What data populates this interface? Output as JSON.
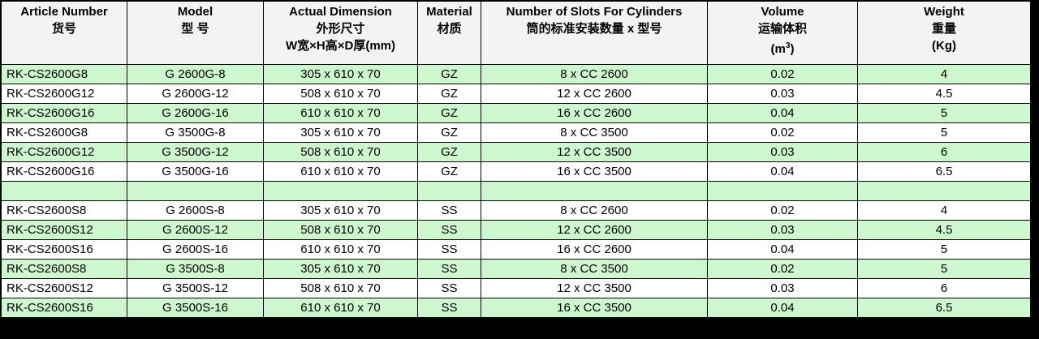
{
  "table": {
    "columns": [
      {
        "lines": [
          "Article Number",
          "货号"
        ]
      },
      {
        "lines": [
          "Model",
          "型  号"
        ]
      },
      {
        "lines": [
          "Actual Dimension",
          "外形尺寸",
          "W宽×H高×D厚(mm)"
        ]
      },
      {
        "lines": [
          "Material",
          "材质"
        ]
      },
      {
        "lines": [
          "Number of Slots For Cylinders",
          "筒的标准安装数量 x 型号"
        ]
      },
      {
        "lines": [
          "Volume",
          "运输体积"
        ],
        "unit": [
          "(m",
          "3",
          ")"
        ]
      },
      {
        "lines": [
          "Weight",
          "重量",
          "(Kg)"
        ]
      }
    ],
    "groups": [
      {
        "rows": [
          [
            "RK-CS2600G8",
            "G 2600G-8",
            "305 x 610 x 70",
            "GZ",
            "8  x CC 2600",
            "0.02",
            "4"
          ],
          [
            "RK-CS2600G12",
            "G 2600G-12",
            "508 x 610 x 70",
            "GZ",
            "12  x CC 2600",
            "0.03",
            "4.5"
          ],
          [
            "RK-CS2600G16",
            "G 2600G-16",
            "610 x 610 x 70",
            "GZ",
            "16  x CC 2600",
            "0.04",
            "5"
          ],
          [
            "RK-CS2600G8",
            "G 3500G-8",
            "305 x 610 x 70",
            "GZ",
            "8  x CC 3500",
            "0.02",
            "5"
          ],
          [
            "RK-CS2600G12",
            "G 3500G-12",
            "508 x 610 x 70",
            "GZ",
            "12  x CC 3500",
            "0.03",
            "6"
          ],
          [
            "RK-CS2600G16",
            "G 3500G-16",
            "610 x 610 x 70",
            "GZ",
            "16  x CC 3500",
            "0.04",
            "6.5"
          ]
        ]
      },
      {
        "rows": [
          [
            "RK-CS2600S8",
            "G 2600S-8",
            "305 x 610 x 70",
            "SS",
            "8  x CC 2600",
            "0.02",
            "4"
          ],
          [
            "RK-CS2600S12",
            "G 2600S-12",
            "508 x 610 x 70",
            "SS",
            "12  x CC 2600",
            "0.03",
            "4.5"
          ],
          [
            "RK-CS2600S16",
            "G 2600S-16",
            "610 x 610 x 70",
            "SS",
            "16  x CC 2600",
            "0.04",
            "5"
          ],
          [
            "RK-CS2600S8",
            "G 3500S-8",
            "305 x 610 x 70",
            "SS",
            "8  x CC 3500",
            "0.02",
            "5"
          ],
          [
            "RK-CS2600S12",
            "G 3500S-12",
            "508 x 610 x 70",
            "SS",
            "12  x CC 3500",
            "0.03",
            "6"
          ],
          [
            "RK-CS2600S16",
            "G 3500S-16",
            "610 x 610 x 70",
            "SS",
            "16  x CC 3500",
            "0.04",
            "6.5"
          ]
        ]
      }
    ]
  }
}
